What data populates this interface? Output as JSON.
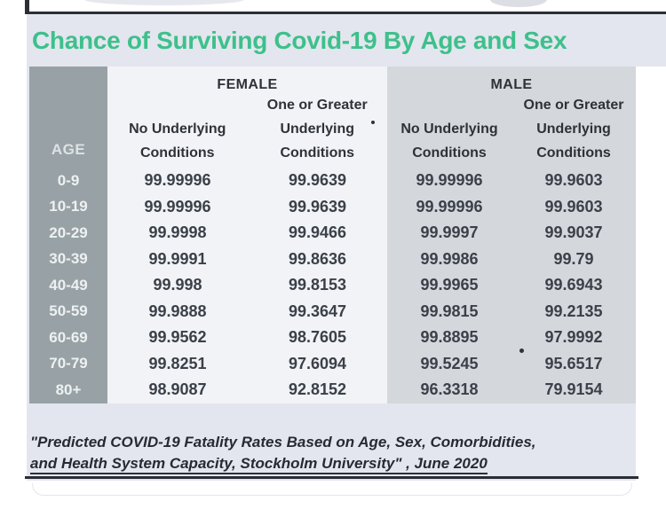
{
  "title": "Chance of Surviving Covid-19 By Age and Sex",
  "colors": {
    "title_green": "#3ec08b",
    "background": "#e3e6ef",
    "age_column": "#98a2a6",
    "female_panel": "#f1f3f6",
    "male_panel": "#d4d7dc",
    "rule_line": "#2b2e35"
  },
  "table": {
    "age_header": "AGE",
    "female_label": "FEMALE",
    "male_label": "MALE",
    "one_or_greater": "One or Greater",
    "no_underlying": "No Underlying",
    "underlying": "Underlying",
    "conditions": "Conditions",
    "rows": [
      [
        "0-9",
        "99.99996",
        "99.9639",
        "99.99996",
        "99.9603"
      ],
      [
        "10-19",
        "99.99996",
        "99.9639",
        "99.99996",
        "99.9603"
      ],
      [
        "20-29",
        "99.9998",
        "99.9466",
        "99.9997",
        "99.9037"
      ],
      [
        "30-39",
        "99.9991",
        "99.8636",
        "99.9986",
        "99.79"
      ],
      [
        "40-49",
        "99.998",
        "99.8153",
        "99.9965",
        "99.6943"
      ],
      [
        "50-59",
        "99.9888",
        "99.3647",
        "99.9815",
        "99.2135"
      ],
      [
        "60-69",
        "99.9562",
        "98.7605",
        "99.8895",
        "97.9992"
      ],
      [
        "70-79",
        "99.8251",
        "97.6094",
        "99.5245",
        "95.6517"
      ],
      [
        "80+",
        "98.9087",
        "92.8152",
        "96.3318",
        "79.9154"
      ]
    ]
  },
  "footer": {
    "line1": "\"Predicted COVID-19 Fatality Rates Based on Age, Sex, Comorbidities,",
    "line2": "and Health System Capacity,  Stockholm University\" , June 2020"
  },
  "chart_data": {
    "type": "table",
    "title": "Chance of Surviving Covid-19 By Age and Sex",
    "unit": "percent chance of survival",
    "categories": [
      "0-9",
      "10-19",
      "20-29",
      "30-39",
      "40-49",
      "50-59",
      "60-69",
      "70-79",
      "80+"
    ],
    "series": [
      {
        "name": "Female - No Underlying Conditions",
        "values": [
          99.99996,
          99.99996,
          99.9998,
          99.9991,
          99.998,
          99.9888,
          99.9562,
          99.8251,
          98.9087
        ]
      },
      {
        "name": "Female - One or Greater Underlying Conditions",
        "values": [
          99.9639,
          99.9639,
          99.9466,
          99.8636,
          99.8153,
          99.3647,
          98.7605,
          97.6094,
          92.8152
        ]
      },
      {
        "name": "Male - No Underlying Conditions",
        "values": [
          99.99996,
          99.99996,
          99.9997,
          99.9986,
          99.9965,
          99.9815,
          99.8895,
          99.5245,
          96.3318
        ]
      },
      {
        "name": "Male - One or Greater Underlying Conditions",
        "values": [
          99.9603,
          99.9603,
          99.9037,
          99.79,
          99.6943,
          99.2135,
          97.9992,
          95.6517,
          79.9154
        ]
      }
    ],
    "source": "\"Predicted COVID-19 Fatality Rates Based on Age, Sex, Comorbidities, and Health System Capacity, Stockholm University\", June 2020"
  }
}
